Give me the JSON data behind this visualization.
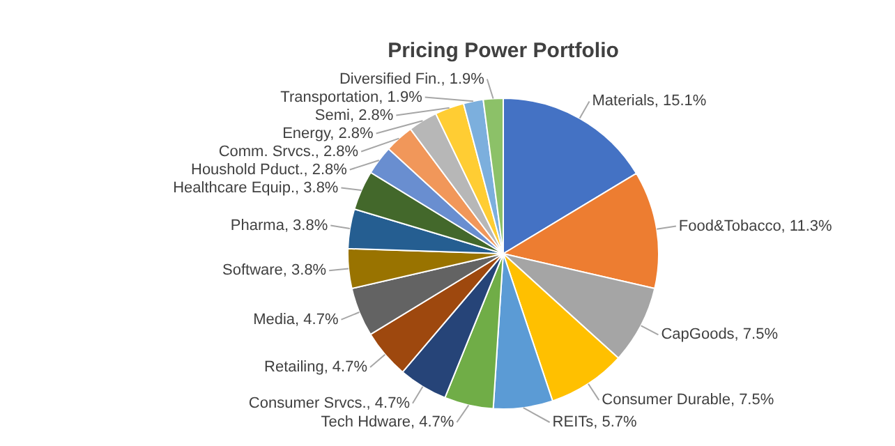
{
  "chart_data": {
    "type": "pie",
    "title": "Pricing Power Portfolio",
    "categories": [
      "Materials",
      "Food&Tobacco",
      "CapGoods",
      "Consumer Durable",
      "REITs",
      "Tech Hdware",
      "Consumer Srvcs.",
      "Retailing",
      "Media",
      "Software",
      "Pharma",
      "Healthcare Equip.",
      "Houshold Pduct.",
      "Comm. Srvcs.",
      "Energy",
      "Semi",
      "Transportation",
      "Diversified Fin."
    ],
    "values": [
      15.1,
      11.3,
      7.5,
      7.5,
      5.7,
      4.7,
      4.7,
      4.7,
      4.7,
      3.8,
      3.8,
      3.8,
      2.8,
      2.8,
      2.8,
      2.8,
      1.9,
      1.9
    ],
    "value_labels": [
      "15.1%",
      "11.3%",
      "7.5%",
      "7.5%",
      "5.7%",
      "4.7%",
      "4.7%",
      "4.7%",
      "4.7%",
      "3.8%",
      "3.8%",
      "3.8%",
      "2.8%",
      "2.8%",
      "2.8%",
      "2.8%",
      "1.9%",
      "1.9%"
    ],
    "colors": [
      "#4472c4",
      "#ed7d31",
      "#a5a5a5",
      "#ffc000",
      "#5b9bd5",
      "#70ad47",
      "#264478",
      "#9e480e",
      "#636363",
      "#997300",
      "#255e91",
      "#43682b",
      "#698ed0",
      "#f1975a",
      "#b7b7b7",
      "#ffcd33",
      "#7cafdd",
      "#8cc168"
    ],
    "legend": false
  }
}
